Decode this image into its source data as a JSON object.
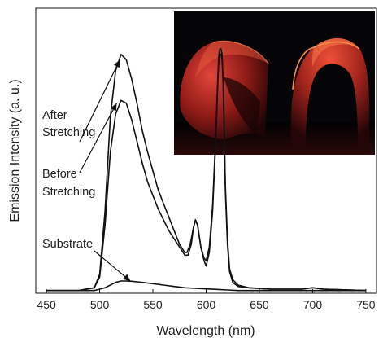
{
  "chart_data": {
    "type": "line",
    "title": "",
    "xlabel": "Wavelength (nm)",
    "ylabel": "Emission Intensity (a. u.)",
    "xlim": [
      440,
      760
    ],
    "ylim": [
      0,
      1.05
    ],
    "xticks": [
      "450",
      "500",
      "550",
      "600",
      "650",
      "700",
      "750"
    ],
    "yticks_shown": false,
    "grid": false,
    "legend": "none",
    "line_color": "#111111",
    "series": [
      {
        "x": [
          450,
          480,
          495,
          500,
          505,
          510,
          515,
          520,
          525,
          530,
          535,
          540,
          545,
          550,
          555,
          560,
          565,
          570,
          575,
          580,
          582,
          585,
          588,
          590,
          592,
          595,
          598,
          600,
          603,
          606,
          609,
          611,
          612,
          613,
          614,
          615,
          616,
          617,
          618,
          620,
          622,
          625,
          630,
          640,
          660,
          690,
          700,
          710,
          750
        ],
        "y": [
          0.01,
          0.01,
          0.02,
          0.07,
          0.3,
          0.65,
          0.82,
          0.88,
          0.86,
          0.79,
          0.7,
          0.6,
          0.52,
          0.45,
          0.38,
          0.33,
          0.28,
          0.23,
          0.18,
          0.15,
          0.15,
          0.18,
          0.24,
          0.27,
          0.25,
          0.17,
          0.13,
          0.12,
          0.17,
          0.32,
          0.58,
          0.8,
          0.88,
          0.9,
          0.9,
          0.88,
          0.78,
          0.6,
          0.4,
          0.2,
          0.09,
          0.05,
          0.03,
          0.02,
          0.015,
          0.015,
          0.02,
          0.015,
          0.01
        ]
      },
      {
        "x": [
          450,
          480,
          495,
          500,
          505,
          510,
          515,
          520,
          525,
          530,
          535,
          540,
          545,
          550,
          555,
          560,
          565,
          570,
          575,
          580,
          583,
          586,
          588,
          590,
          592,
          595,
          598,
          600,
          603,
          606,
          609,
          611,
          612,
          613,
          614,
          615,
          616,
          617,
          618,
          620,
          622,
          625,
          630,
          640,
          660,
          690,
          700,
          710,
          750
        ],
        "y": [
          0.01,
          0.01,
          0.02,
          0.06,
          0.25,
          0.52,
          0.66,
          0.71,
          0.7,
          0.64,
          0.56,
          0.48,
          0.41,
          0.36,
          0.31,
          0.27,
          0.23,
          0.2,
          0.17,
          0.14,
          0.14,
          0.18,
          0.24,
          0.27,
          0.25,
          0.17,
          0.12,
          0.1,
          0.15,
          0.3,
          0.56,
          0.78,
          0.86,
          0.88,
          0.88,
          0.86,
          0.76,
          0.58,
          0.38,
          0.18,
          0.08,
          0.04,
          0.025,
          0.02,
          0.015,
          0.015,
          0.02,
          0.015,
          0.01
        ]
      },
      {
        "x": [
          450,
          480,
          495,
          500,
          505,
          510,
          515,
          520,
          525,
          530,
          535,
          540,
          550,
          560,
          570,
          580,
          590,
          600,
          610,
          620,
          630,
          650,
          700,
          750
        ],
        "y": [
          0.01,
          0.01,
          0.01,
          0.015,
          0.02,
          0.03,
          0.04,
          0.045,
          0.045,
          0.044,
          0.042,
          0.04,
          0.035,
          0.03,
          0.025,
          0.02,
          0.018,
          0.016,
          0.014,
          0.012,
          0.01,
          0.01,
          0.01,
          0.01
        ]
      }
    ],
    "annotations": [
      {
        "lines": [
          "After",
          "Stretching"
        ],
        "x": 519,
        "y": 0.86
      },
      {
        "lines": [
          "Before",
          "Stretching"
        ],
        "x": 516,
        "y": 0.7
      },
      {
        "lines": [
          "Substrate"
        ],
        "x": 529,
        "y": 0.044
      }
    ]
  },
  "inset": {
    "kind": "photograph",
    "colors": {
      "background": "#050507",
      "glow": "#d8342e",
      "edge": "#ff6a3a"
    }
  }
}
